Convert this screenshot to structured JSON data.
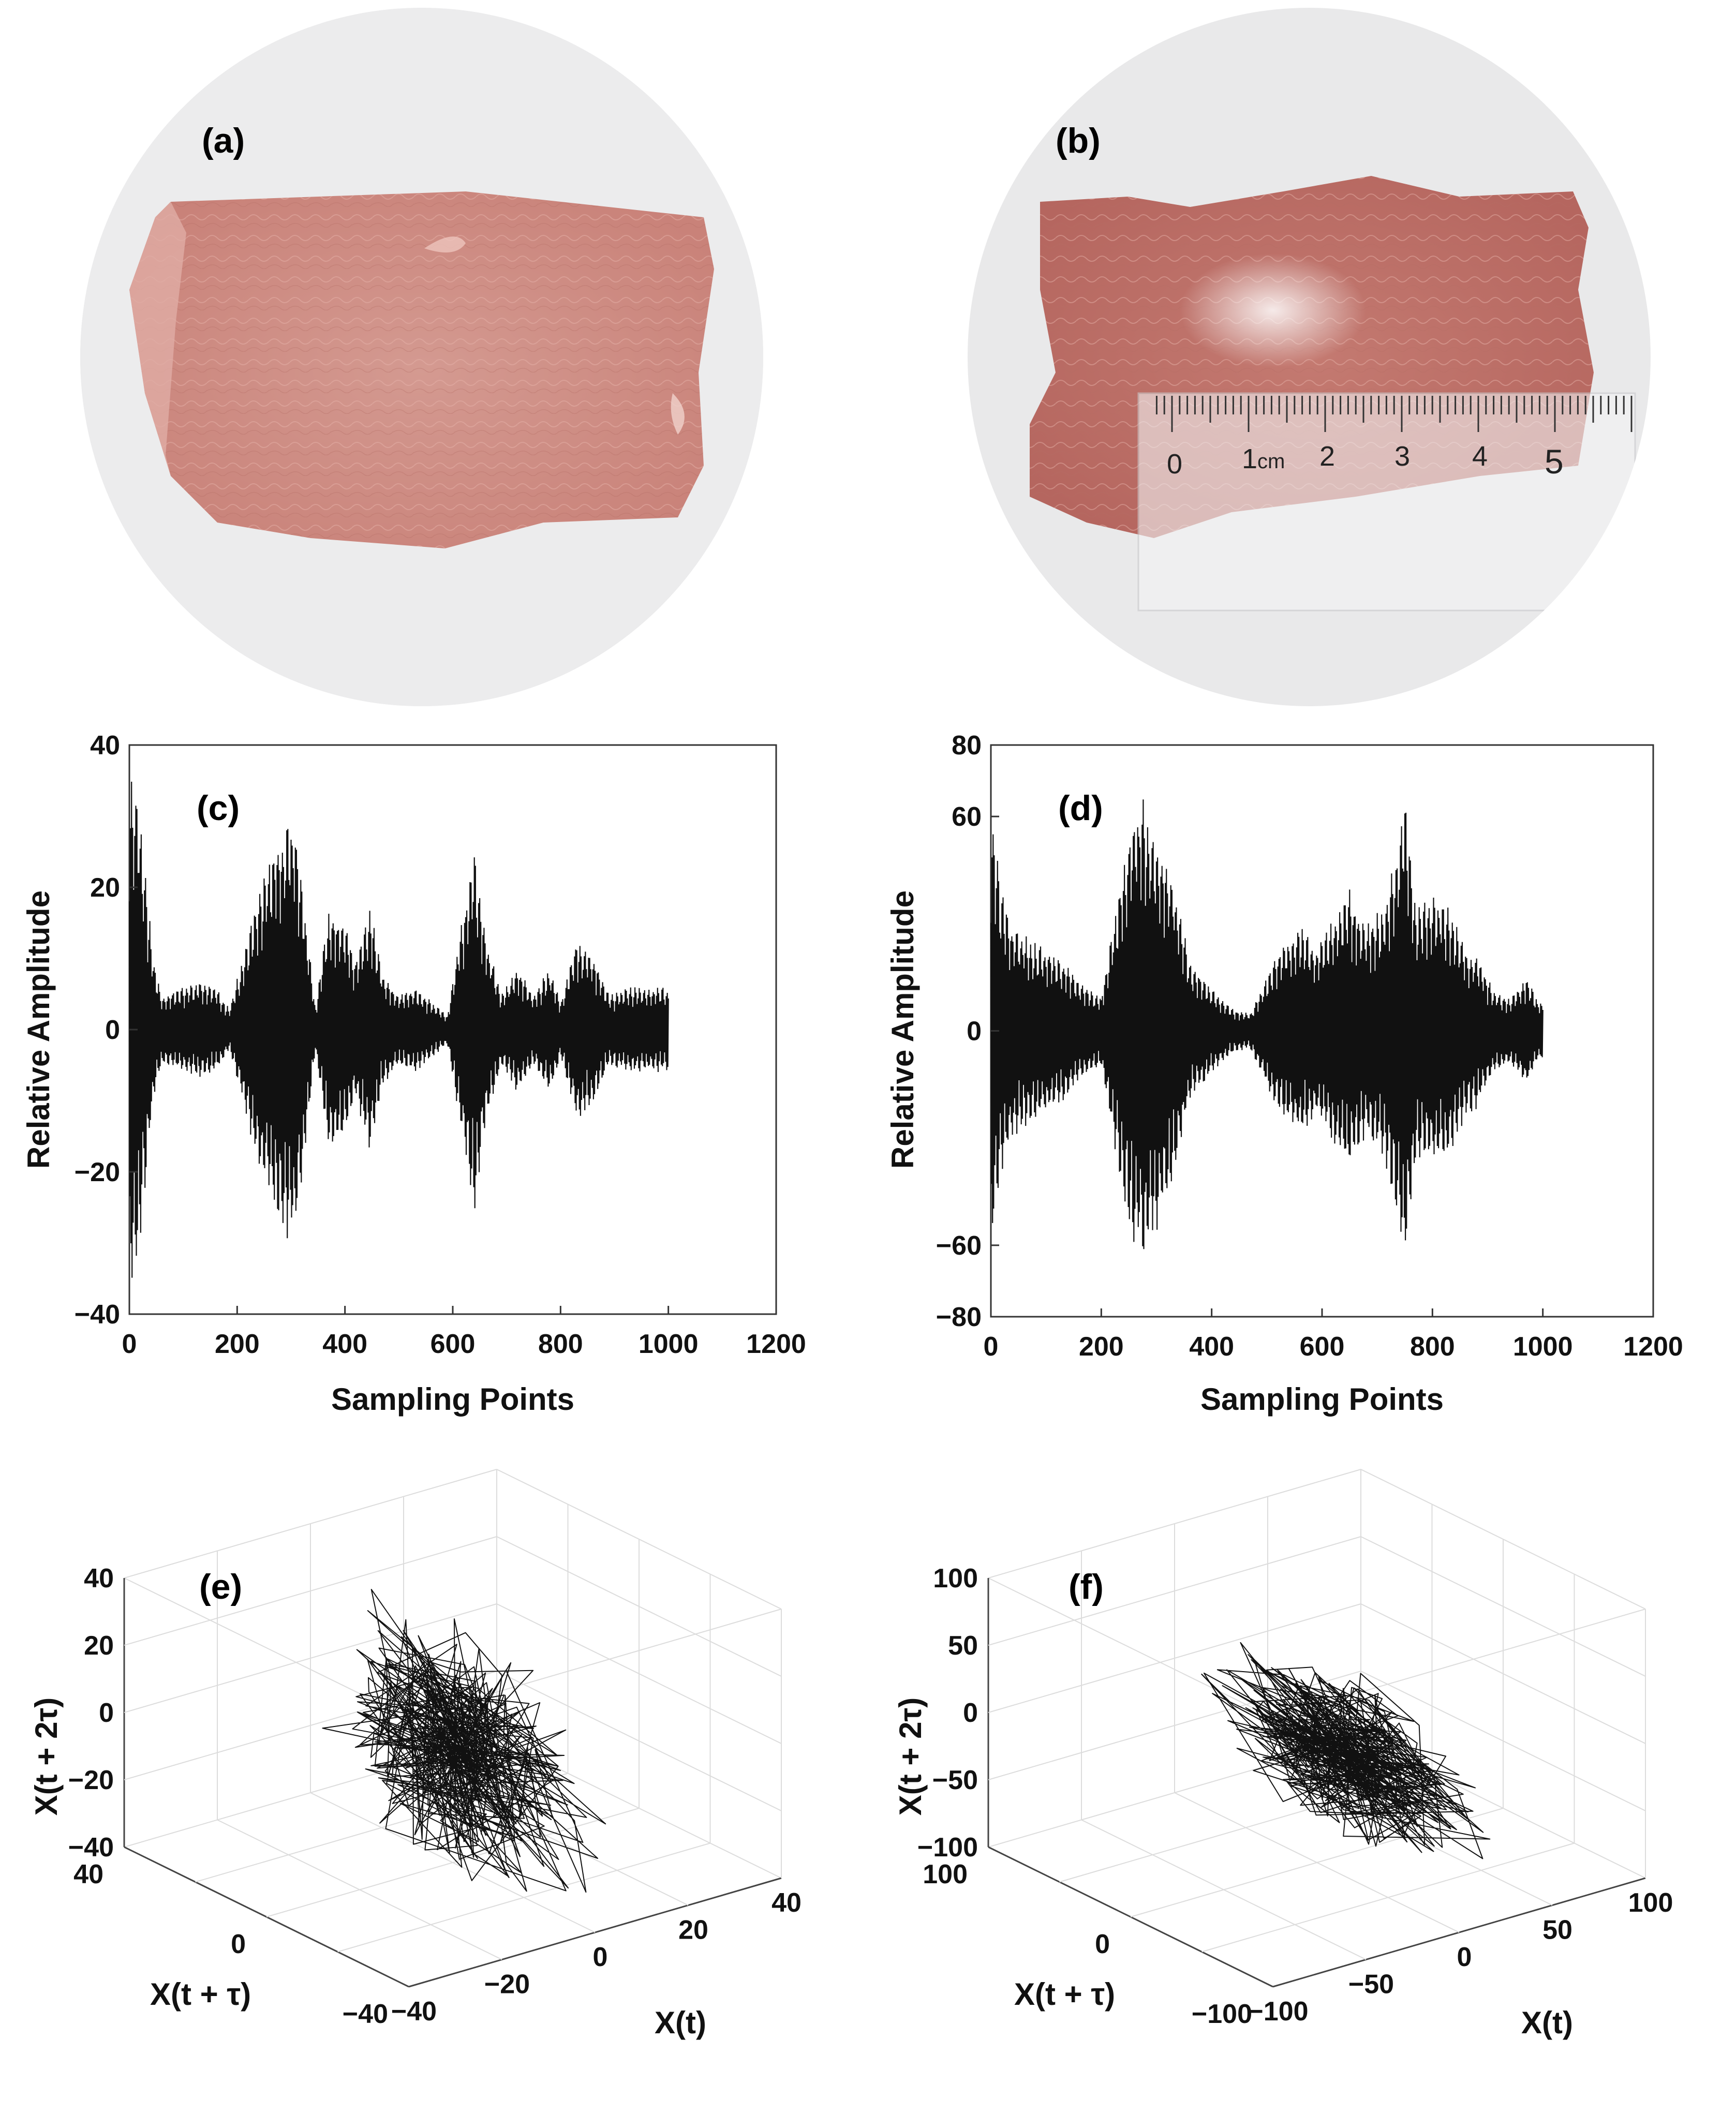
{
  "photos": [
    {
      "label": "(a)"
    },
    {
      "label": "(b)",
      "ruler": {
        "numbers": [
          "0",
          "1",
          "2",
          "3",
          "4",
          "5"
        ],
        "unit": "cm"
      }
    }
  ],
  "chart_data": [
    {
      "type": "line",
      "panel": "(c)",
      "xlabel": "Sampling Points",
      "ylabel": "Relative Amplitude",
      "xlim": [
        0,
        1200
      ],
      "ylim": [
        -40,
        40
      ],
      "xticks": [
        "0",
        "200",
        "400",
        "600",
        "800",
        "1000",
        "1200"
      ],
      "yticks": [
        "40",
        "20",
        "0",
        "−20",
        "−40"
      ],
      "n_points": 1000,
      "envelope": [
        [
          0,
          37
        ],
        [
          15,
          35
        ],
        [
          30,
          22
        ],
        [
          45,
          10
        ],
        [
          60,
          5
        ],
        [
          100,
          6
        ],
        [
          130,
          7
        ],
        [
          160,
          6
        ],
        [
          185,
          3
        ],
        [
          210,
          10
        ],
        [
          240,
          20
        ],
        [
          270,
          26
        ],
        [
          290,
          29
        ],
        [
          305,
          31
        ],
        [
          320,
          22
        ],
        [
          345,
          3
        ],
        [
          370,
          17
        ],
        [
          395,
          16
        ],
        [
          420,
          10
        ],
        [
          445,
          18
        ],
        [
          470,
          8
        ],
        [
          500,
          5
        ],
        [
          530,
          6
        ],
        [
          560,
          4
        ],
        [
          590,
          2
        ],
        [
          610,
          12
        ],
        [
          640,
          26
        ],
        [
          660,
          14
        ],
        [
          690,
          5
        ],
        [
          720,
          9
        ],
        [
          750,
          5
        ],
        [
          780,
          9
        ],
        [
          800,
          4
        ],
        [
          830,
          13
        ],
        [
          860,
          11
        ],
        [
          890,
          5
        ],
        [
          920,
          6
        ],
        [
          960,
          6
        ],
        [
          1000,
          6
        ]
      ]
    },
    {
      "type": "line",
      "panel": "(d)",
      "xlabel": "Sampling Points",
      "ylabel": "Relative Amplitude",
      "xlim": [
        0,
        1200
      ],
      "ylim": [
        -80,
        80
      ],
      "xticks": [
        "0",
        "200",
        "400",
        "600",
        "800",
        "1000",
        "1200"
      ],
      "yticks": [
        "80",
        "60",
        "0",
        "−60",
        "−80"
      ],
      "n_points": 1000,
      "envelope": [
        [
          0,
          62
        ],
        [
          20,
          40
        ],
        [
          40,
          30
        ],
        [
          80,
          25
        ],
        [
          120,
          22
        ],
        [
          160,
          14
        ],
        [
          200,
          10
        ],
        [
          230,
          38
        ],
        [
          255,
          60
        ],
        [
          275,
          66
        ],
        [
          300,
          58
        ],
        [
          330,
          44
        ],
        [
          360,
          20
        ],
        [
          400,
          12
        ],
        [
          440,
          6
        ],
        [
          470,
          5
        ],
        [
          500,
          16
        ],
        [
          530,
          25
        ],
        [
          560,
          30
        ],
        [
          590,
          24
        ],
        [
          620,
          33
        ],
        [
          650,
          40
        ],
        [
          680,
          30
        ],
        [
          710,
          35
        ],
        [
          730,
          48
        ],
        [
          750,
          70
        ],
        [
          770,
          35
        ],
        [
          800,
          38
        ],
        [
          830,
          36
        ],
        [
          860,
          24
        ],
        [
          880,
          22
        ],
        [
          910,
          12
        ],
        [
          940,
          9
        ],
        [
          970,
          16
        ],
        [
          990,
          9
        ],
        [
          1000,
          8
        ]
      ]
    },
    {
      "type": "scatter",
      "panel": "(e)",
      "description_kind": "3d-phase-space-trajectory",
      "xlabel": "X(t)",
      "ylabel": "X(t + τ)",
      "zlabel": "X(t + 2τ)",
      "xlim": [
        -40,
        40
      ],
      "ylim": [
        -40,
        40
      ],
      "zlim": [
        -40,
        40
      ],
      "xticks": [
        "−40",
        "−20",
        "0",
        "20",
        "40"
      ],
      "yticks": [
        "40",
        "0",
        "−40"
      ],
      "zticks": [
        "40",
        "20",
        "0",
        "−20",
        "−40"
      ],
      "n_points": 420
    },
    {
      "type": "scatter",
      "panel": "(f)",
      "description_kind": "3d-phase-space-trajectory",
      "xlabel": "X(t)",
      "ylabel": "X(t + τ)",
      "zlabel": "X(t + 2τ)",
      "xlim": [
        -100,
        100
      ],
      "ylim": [
        -100,
        100
      ],
      "zlim": [
        -100,
        100
      ],
      "xticks": [
        "−100",
        "−50",
        "0",
        "50",
        "100"
      ],
      "yticks": [
        "100",
        "0",
        "−100"
      ],
      "zticks": [
        "100",
        "50",
        "0",
        "−50",
        "−100"
      ],
      "n_points": 420
    }
  ],
  "colors": {
    "line": "#111111",
    "grid": "#dcdcdc",
    "meat_light": "#cf8f86",
    "meat_dark": "#b8716a",
    "photo_bg": "#e9e9ea"
  }
}
